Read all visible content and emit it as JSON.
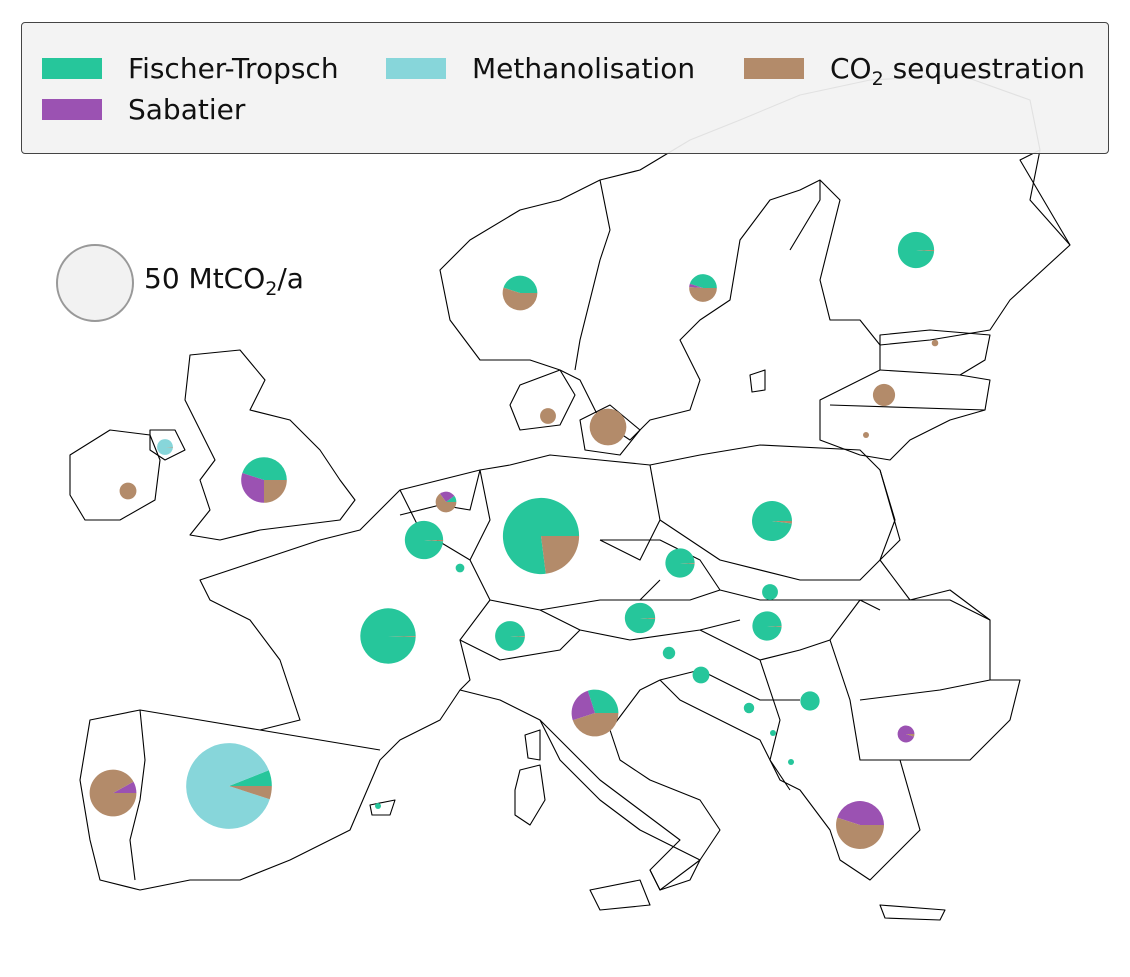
{
  "legend": {
    "items": [
      {
        "label": "Fischer-Tropsch",
        "color": "#26c69b"
      },
      {
        "label": "Methanolisation",
        "color": "#87d6da"
      },
      {
        "label_main": "CO",
        "label_sub": "2",
        "label_rest": " sequestration",
        "color": "#b38b6a"
      },
      {
        "label": "Sabatier",
        "color": "#9b52b2"
      }
    ]
  },
  "size_reference": {
    "value_text": "50 MtCO",
    "sub": "2",
    "suffix": "/a",
    "value": 50
  },
  "colors": {
    "fischer_tropsch": "#26c69b",
    "methanolisation": "#87d6da",
    "co2_sequestration": "#b38b6a",
    "sabatier": "#9b52b2",
    "border": "#000000",
    "background": "#ffffff"
  },
  "pies": [
    {
      "name": "norway",
      "total": 11,
      "shares": {
        "fischer_tropsch": 0.45,
        "methanolisation": 0,
        "sabatier": 0,
        "co2_sequestration": 0.55
      }
    },
    {
      "name": "sweden",
      "total": 7,
      "shares": {
        "fischer_tropsch": 0.45,
        "methanolisation": 0,
        "sabatier": 0.04,
        "co2_sequestration": 0.51
      }
    },
    {
      "name": "finland",
      "total": 12,
      "shares": {
        "fischer_tropsch": 0.99,
        "methanolisation": 0,
        "sabatier": 0,
        "co2_sequestration": 0.01
      }
    },
    {
      "name": "estonia",
      "total": 0.4,
      "shares": {
        "fischer_tropsch": 0,
        "methanolisation": 0,
        "sabatier": 0,
        "co2_sequestration": 1
      }
    },
    {
      "name": "latvia",
      "total": 4.5,
      "shares": {
        "fischer_tropsch": 0,
        "methanolisation": 0,
        "sabatier": 0,
        "co2_sequestration": 1
      }
    },
    {
      "name": "lithuania",
      "total": 0.25,
      "shares": {
        "fischer_tropsch": 0,
        "methanolisation": 0,
        "sabatier": 0,
        "co2_sequestration": 1
      }
    },
    {
      "name": "denmark-west",
      "total": 2.3,
      "shares": {
        "fischer_tropsch": 0,
        "methanolisation": 0,
        "sabatier": 0,
        "co2_sequestration": 1
      }
    },
    {
      "name": "denmark-east",
      "total": 12.3,
      "shares": {
        "fischer_tropsch": 0,
        "methanolisation": 0,
        "sabatier": 0,
        "co2_sequestration": 1
      }
    },
    {
      "name": "northern-ireland",
      "total": 2.3,
      "shares": {
        "fischer_tropsch": 0,
        "methanolisation": 0.99,
        "sabatier": 0,
        "co2_sequestration": 0.01
      }
    },
    {
      "name": "ireland",
      "total": 2.6,
      "shares": {
        "fischer_tropsch": 0,
        "methanolisation": 0,
        "sabatier": 0,
        "co2_sequestration": 1
      }
    },
    {
      "name": "great-britain",
      "total": 19,
      "shares": {
        "fischer_tropsch": 0.45,
        "methanolisation": 0,
        "sabatier": 0.3,
        "co2_sequestration": 0.25
      }
    },
    {
      "name": "netherlands",
      "total": 3.9,
      "shares": {
        "fischer_tropsch": 0.1,
        "methanolisation": 0,
        "sabatier": 0.25,
        "co2_sequestration": 0.65
      }
    },
    {
      "name": "belgium",
      "total": 13.4,
      "shares": {
        "fischer_tropsch": 0.99,
        "methanolisation": 0,
        "sabatier": 0,
        "co2_sequestration": 0.01
      }
    },
    {
      "name": "luxembourg",
      "total": 0.7,
      "shares": {
        "fischer_tropsch": 1,
        "methanolisation": 0,
        "sabatier": 0,
        "co2_sequestration": 0
      }
    },
    {
      "name": "germany",
      "total": 53,
      "shares": {
        "fischer_tropsch": 0.77,
        "methanolisation": 0,
        "sabatier": 0,
        "co2_sequestration": 0.23
      }
    },
    {
      "name": "poland",
      "total": 14.6,
      "shares": {
        "fischer_tropsch": 0.98,
        "methanolisation": 0,
        "sabatier": 0,
        "co2_sequestration": 0.02
      }
    },
    {
      "name": "czechia",
      "total": 7.8,
      "shares": {
        "fischer_tropsch": 0.99,
        "methanolisation": 0,
        "sabatier": 0,
        "co2_sequestration": 0.01
      }
    },
    {
      "name": "slovakia",
      "total": 2.3,
      "shares": {
        "fischer_tropsch": 1,
        "methanolisation": 0,
        "sabatier": 0,
        "co2_sequestration": 0
      }
    },
    {
      "name": "austria",
      "total": 8.4,
      "shares": {
        "fischer_tropsch": 0.99,
        "methanolisation": 0,
        "sabatier": 0,
        "co2_sequestration": 0.01
      }
    },
    {
      "name": "hungary",
      "total": 7.8,
      "shares": {
        "fischer_tropsch": 0.99,
        "methanolisation": 0,
        "sabatier": 0,
        "co2_sequestration": 0.01
      }
    },
    {
      "name": "switzerland",
      "total": 8.1,
      "shares": {
        "fischer_tropsch": 0.99,
        "methanolisation": 0,
        "sabatier": 0,
        "co2_sequestration": 0.01
      }
    },
    {
      "name": "france",
      "total": 28,
      "shares": {
        "fischer_tropsch": 0.995,
        "methanolisation": 0,
        "sabatier": 0,
        "co2_sequestration": 0.005
      }
    },
    {
      "name": "slovenia",
      "total": 1.4,
      "shares": {
        "fischer_tropsch": 1,
        "methanolisation": 0,
        "sabatier": 0,
        "co2_sequestration": 0
      }
    },
    {
      "name": "croatia",
      "total": 2.6,
      "shares": {
        "fischer_tropsch": 1,
        "methanolisation": 0,
        "sabatier": 0,
        "co2_sequestration": 0
      }
    },
    {
      "name": "bosnia",
      "total": 1,
      "shares": {
        "fischer_tropsch": 1,
        "methanolisation": 0,
        "sabatier": 0,
        "co2_sequestration": 0
      }
    },
    {
      "name": "serbia",
      "total": 3.4,
      "shares": {
        "fischer_tropsch": 1,
        "methanolisation": 0,
        "sabatier": 0,
        "co2_sequestration": 0
      }
    },
    {
      "name": "montenegro",
      "total": 0.25,
      "shares": {
        "fischer_tropsch": 1,
        "methanolisation": 0,
        "sabatier": 0,
        "co2_sequestration": 0
      }
    },
    {
      "name": "albania",
      "total": 0.25,
      "shares": {
        "fischer_tropsch": 1,
        "methanolisation": 0,
        "sabatier": 0,
        "co2_sequestration": 0
      }
    },
    {
      "name": "bulgaria",
      "total": 2.6,
      "shares": {
        "fischer_tropsch": 0,
        "methanolisation": 0,
        "sabatier": 0.95,
        "co2_sequestration": 0.05
      }
    },
    {
      "name": "italy",
      "total": 20,
      "shares": {
        "fischer_tropsch": 0.3,
        "methanolisation": 0,
        "sabatier": 0.25,
        "co2_sequestration": 0.45
      }
    },
    {
      "name": "greece",
      "total": 21,
      "shares": {
        "fischer_tropsch": 0,
        "methanolisation": 0,
        "sabatier": 0.45,
        "co2_sequestration": 0.55
      }
    },
    {
      "name": "spain",
      "total": 67,
      "shares": {
        "fischer_tropsch": 0.06,
        "methanolisation": 0.89,
        "sabatier": 0,
        "co2_sequestration": 0.05
      }
    },
    {
      "name": "portugal",
      "total": 20,
      "shares": {
        "fischer_tropsch": 0,
        "methanolisation": 0,
        "sabatier": 0.08,
        "co2_sequestration": 0.92
      }
    },
    {
      "name": "balearic",
      "total": 0.15,
      "shares": {
        "fischer_tropsch": 1,
        "methanolisation": 0,
        "sabatier": 0,
        "co2_sequestration": 0
      }
    }
  ]
}
